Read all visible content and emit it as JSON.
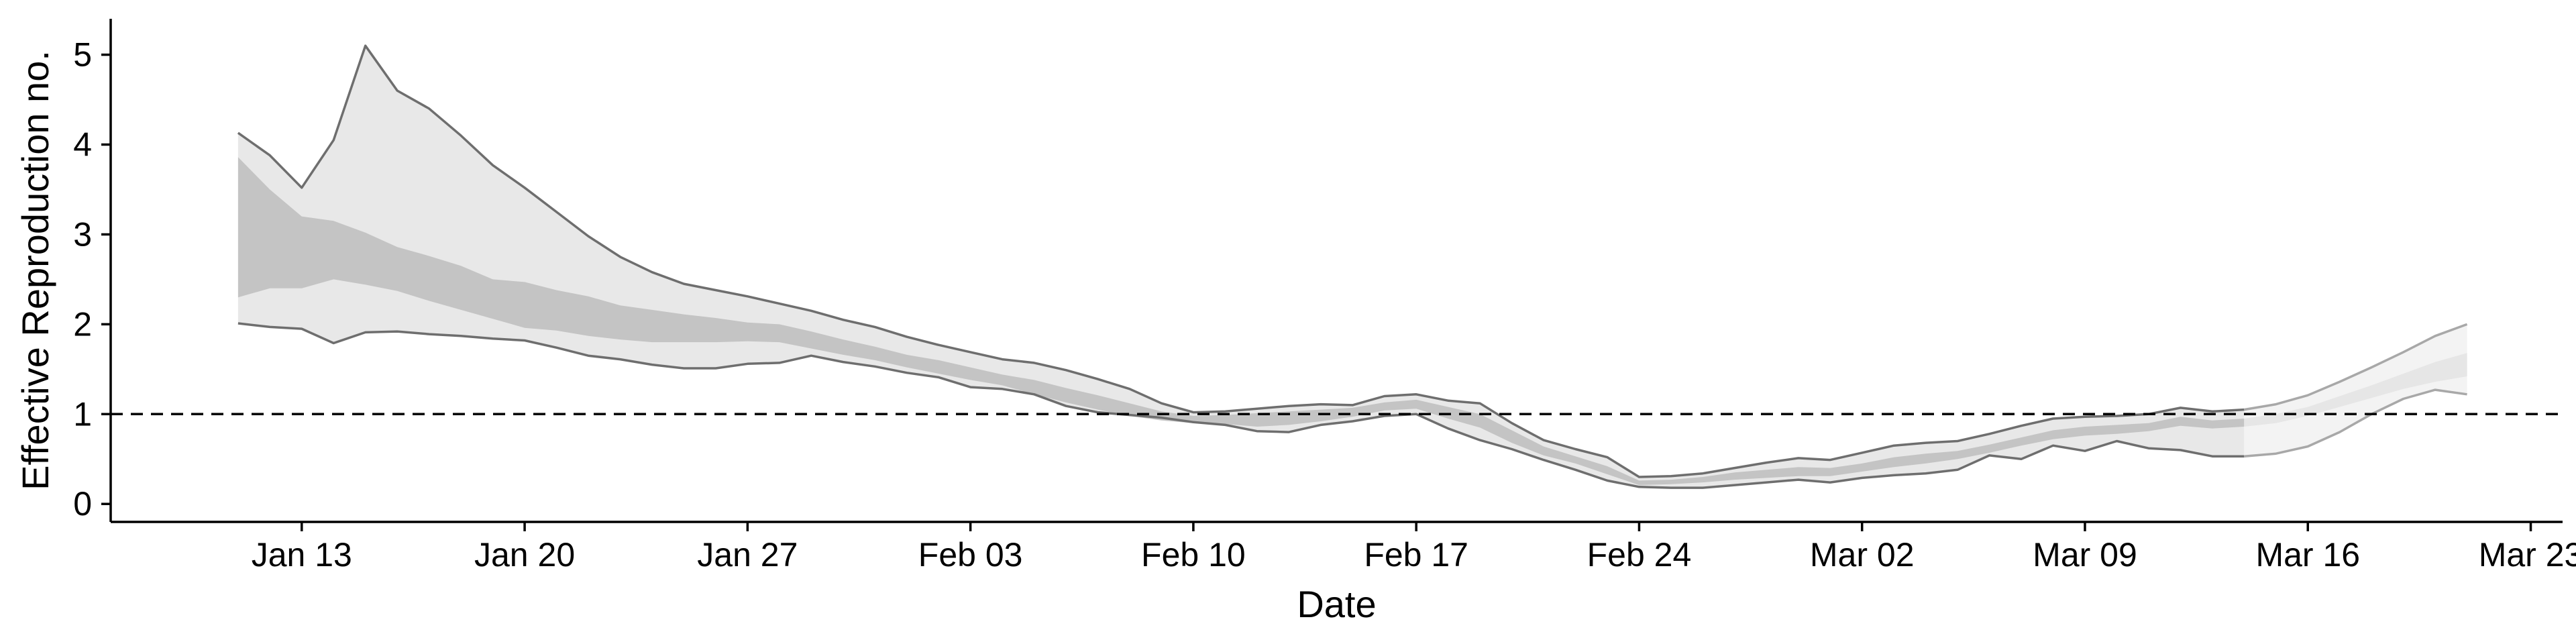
{
  "chart_data": {
    "type": "area",
    "xlabel": "Date",
    "ylabel": "Effective Reproduction no.",
    "x_type": "date",
    "xlim": [
      "2020-01-07",
      "2020-03-24"
    ],
    "ylim": [
      -0.2,
      5.4
    ],
    "x_ticks": [
      {
        "date": "2020-01-13",
        "label": "Jan 13"
      },
      {
        "date": "2020-01-20",
        "label": "Jan 20"
      },
      {
        "date": "2020-01-27",
        "label": "Jan 27"
      },
      {
        "date": "2020-02-03",
        "label": "Feb 03"
      },
      {
        "date": "2020-02-10",
        "label": "Feb 10"
      },
      {
        "date": "2020-02-17",
        "label": "Feb 17"
      },
      {
        "date": "2020-02-24",
        "label": "Feb 24"
      },
      {
        "date": "2020-03-02",
        "label": "Mar 02"
      },
      {
        "date": "2020-03-09",
        "label": "Mar 09"
      },
      {
        "date": "2020-03-16",
        "label": "Mar 16"
      },
      {
        "date": "2020-03-23",
        "label": "Mar 23"
      }
    ],
    "y_ticks": [
      0,
      1,
      2,
      3,
      4,
      5
    ],
    "reference_line": {
      "y": 1,
      "style": "dashed"
    },
    "grid": false,
    "legend": "none",
    "colors": {
      "outer_band": "#e8e8e8",
      "inner_band": "#c4c4c4",
      "outline": "#6e6e6e",
      "recent_outer": "#f3f3f3",
      "recent_inner": "#e6e6e6",
      "recent_outline": "#a8a8a8",
      "axis": "#000000"
    },
    "x": [
      "2020-01-11",
      "2020-01-12",
      "2020-01-13",
      "2020-01-14",
      "2020-01-15",
      "2020-01-16",
      "2020-01-17",
      "2020-01-18",
      "2020-01-19",
      "2020-01-20",
      "2020-01-21",
      "2020-01-22",
      "2020-01-23",
      "2020-01-24",
      "2020-01-25",
      "2020-01-26",
      "2020-01-27",
      "2020-01-28",
      "2020-01-29",
      "2020-01-30",
      "2020-01-31",
      "2020-02-01",
      "2020-02-02",
      "2020-02-03",
      "2020-02-04",
      "2020-02-05",
      "2020-02-06",
      "2020-02-07",
      "2020-02-08",
      "2020-02-09",
      "2020-02-10",
      "2020-02-11",
      "2020-02-12",
      "2020-02-13",
      "2020-02-14",
      "2020-02-15",
      "2020-02-16",
      "2020-02-17",
      "2020-02-18",
      "2020-02-19",
      "2020-02-20",
      "2020-02-21",
      "2020-02-22",
      "2020-02-23",
      "2020-02-24",
      "2020-02-25",
      "2020-02-26",
      "2020-02-27",
      "2020-02-28",
      "2020-02-29",
      "2020-03-01",
      "2020-03-02",
      "2020-03-03",
      "2020-03-04",
      "2020-03-05",
      "2020-03-06",
      "2020-03-07",
      "2020-03-08",
      "2020-03-09",
      "2020-03-10",
      "2020-03-11",
      "2020-03-12",
      "2020-03-13",
      "2020-03-14",
      "2020-03-15",
      "2020-03-16",
      "2020-03-17",
      "2020-03-18",
      "2020-03-19",
      "2020-03-20",
      "2020-03-21"
    ],
    "series": [
      {
        "name": "upper_90",
        "values": [
          4.13,
          3.88,
          3.52,
          4.05,
          5.1,
          4.6,
          4.4,
          4.1,
          3.77,
          3.52,
          3.25,
          2.98,
          2.75,
          2.58,
          2.45,
          2.38,
          2.31,
          2.23,
          2.15,
          2.05,
          1.97,
          1.86,
          1.77,
          1.69,
          1.61,
          1.57,
          1.49,
          1.39,
          1.28,
          1.12,
          1.02,
          1.03,
          1.06,
          1.09,
          1.11,
          1.1,
          1.2,
          1.22,
          1.15,
          1.12,
          0.9,
          0.71,
          0.61,
          0.52,
          0.3,
          0.31,
          0.34,
          0.4,
          0.46,
          0.51,
          0.49,
          0.57,
          0.65,
          0.68,
          0.7,
          0.78,
          0.87,
          0.95,
          0.97,
          0.98,
          1.0,
          1.07,
          1.03,
          1.05,
          1.11,
          1.21,
          1.36,
          1.52,
          1.69,
          1.87,
          2.0
        ]
      },
      {
        "name": "upper_50",
        "values": [
          3.86,
          3.5,
          3.2,
          3.15,
          3.02,
          2.86,
          2.76,
          2.65,
          2.5,
          2.47,
          2.38,
          2.31,
          2.21,
          2.16,
          2.11,
          2.07,
          2.02,
          2.0,
          1.92,
          1.83,
          1.75,
          1.66,
          1.6,
          1.52,
          1.44,
          1.38,
          1.29,
          1.21,
          1.12,
          1.03,
          0.98,
          0.99,
          1.01,
          1.03,
          1.05,
          1.07,
          1.13,
          1.16,
          1.08,
          1.0,
          0.82,
          0.64,
          0.53,
          0.42,
          0.26,
          0.27,
          0.3,
          0.35,
          0.38,
          0.41,
          0.4,
          0.45,
          0.52,
          0.56,
          0.59,
          0.66,
          0.74,
          0.82,
          0.86,
          0.88,
          0.9,
          0.97,
          0.93,
          0.95,
          1.0,
          1.08,
          1.2,
          1.32,
          1.45,
          1.58,
          1.68
        ]
      },
      {
        "name": "lower_50",
        "values": [
          2.3,
          2.4,
          2.4,
          2.5,
          2.44,
          2.37,
          2.26,
          2.16,
          2.06,
          1.96,
          1.93,
          1.87,
          1.83,
          1.8,
          1.8,
          1.8,
          1.81,
          1.8,
          1.73,
          1.66,
          1.6,
          1.52,
          1.45,
          1.38,
          1.32,
          1.22,
          1.13,
          1.05,
          0.98,
          0.93,
          0.9,
          0.89,
          0.86,
          0.88,
          0.92,
          0.97,
          1.04,
          1.06,
          0.95,
          0.85,
          0.68,
          0.54,
          0.45,
          0.33,
          0.21,
          0.22,
          0.24,
          0.27,
          0.29,
          0.31,
          0.31,
          0.36,
          0.41,
          0.45,
          0.5,
          0.57,
          0.65,
          0.72,
          0.76,
          0.78,
          0.81,
          0.87,
          0.84,
          0.86,
          0.9,
          0.98,
          1.08,
          1.18,
          1.28,
          1.36,
          1.42
        ]
      },
      {
        "name": "lower_90",
        "values": [
          2.01,
          1.97,
          1.95,
          1.79,
          1.91,
          1.92,
          1.89,
          1.87,
          1.84,
          1.82,
          1.74,
          1.65,
          1.61,
          1.55,
          1.51,
          1.51,
          1.56,
          1.57,
          1.65,
          1.58,
          1.53,
          1.46,
          1.41,
          1.3,
          1.28,
          1.22,
          1.09,
          1.02,
          0.99,
          0.96,
          0.91,
          0.88,
          0.81,
          0.8,
          0.88,
          0.92,
          0.98,
          1.0,
          0.84,
          0.71,
          0.61,
          0.49,
          0.38,
          0.26,
          0.19,
          0.18,
          0.18,
          0.21,
          0.24,
          0.27,
          0.24,
          0.29,
          0.32,
          0.34,
          0.38,
          0.54,
          0.5,
          0.65,
          0.59,
          0.7,
          0.62,
          0.6,
          0.53,
          0.53,
          0.56,
          0.64,
          0.8,
          1.0,
          1.17,
          1.27,
          1.22
        ]
      }
    ],
    "recent_from": "2020-03-14"
  }
}
